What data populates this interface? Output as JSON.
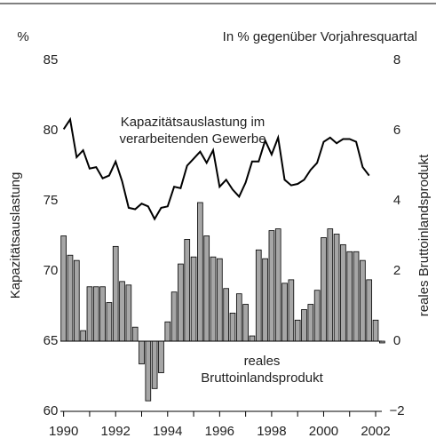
{
  "chart_data": {
    "type": "bar-line",
    "unit_label": "%",
    "right_title": "In % gegenüber Vorjahresquartal",
    "ylabel": "Kapazitätsauslastung",
    "y2label": "reales Bruttoinlandsprodukt",
    "annotations": [
      [
        "Kapazitätsauslastung im",
        "verarbeitenden Gewerbe"
      ],
      [
        "reales",
        "Bruttoinlandsprodukt"
      ]
    ],
    "x": [
      1990,
      1990.25,
      1990.5,
      1990.75,
      1991,
      1991.25,
      1991.5,
      1991.75,
      1992,
      1992.25,
      1992.5,
      1992.75,
      1993,
      1993.25,
      1993.5,
      1993.75,
      1994,
      1994.25,
      1994.5,
      1994.75,
      1995,
      1995.25,
      1995.5,
      1995.75,
      1996,
      1996.25,
      1996.5,
      1996.75,
      1997,
      1997.25,
      1997.5,
      1997.75,
      1998,
      1998.25,
      1998.5,
      1998.75,
      1999,
      1999.25,
      1999.5,
      1999.75,
      2000,
      2000.25,
      2000.5,
      2000.75,
      2001,
      2001.25,
      2001.5,
      2001.75,
      2002,
      2002.25
    ],
    "series": [
      {
        "name": "reales Bruttoinlandsprodukt",
        "kind": "bar",
        "axis": "y2",
        "color": "#a6a6a6",
        "values": [
          3.0,
          2.45,
          2.3,
          0.3,
          1.55,
          1.55,
          1.55,
          1.1,
          2.7,
          1.7,
          1.6,
          0.4,
          -0.65,
          -1.7,
          -1.35,
          -0.9,
          0.55,
          1.4,
          2.2,
          2.9,
          2.4,
          3.95,
          3.0,
          2.4,
          2.35,
          1.5,
          0.8,
          1.35,
          1.05,
          0.15,
          2.6,
          2.35,
          3.15,
          3.2,
          1.65,
          1.75,
          0.6,
          0.9,
          1.05,
          1.45,
          2.95,
          3.2,
          3.05,
          2.75,
          2.55,
          2.55,
          2.3,
          1.75,
          0.6,
          -0.05
        ]
      },
      {
        "name": "Kapazitätsauslastung im verarbeitenden Gewerbe",
        "kind": "line",
        "axis": "y",
        "color": "#000000",
        "values": [
          80.1,
          80.8,
          78.1,
          78.6,
          77.3,
          77.4,
          76.6,
          76.8,
          77.8,
          76.4,
          74.5,
          74.4,
          74.8,
          74.6,
          73.7,
          74.5,
          74.6,
          76.0,
          75.9,
          77.5,
          78.0,
          78.5,
          77.7,
          78.6,
          76.0,
          76.5,
          75.8,
          75.3,
          76.3,
          77.8,
          77.8,
          79.3,
          78.3,
          79.5,
          76.5,
          76.1,
          76.2,
          76.5,
          77.2,
          77.7,
          79.2,
          79.5,
          79.1,
          79.4,
          79.4,
          79.2,
          77.4,
          76.8,
          null,
          null
        ]
      }
    ],
    "xlim": [
      1989.875,
      2002.375
    ],
    "xticks": [
      1990,
      1992,
      1994,
      1996,
      1998,
      2000,
      2002
    ],
    "xminorticks": [
      1991,
      1993,
      1995,
      1997,
      1999,
      2001
    ],
    "ylim": [
      60,
      85
    ],
    "yticks": [
      60,
      65,
      70,
      75,
      80,
      85
    ],
    "y2lim": [
      -2,
      8
    ],
    "y2ticks": [
      {
        "value": -2,
        "label": "−2"
      },
      0,
      2,
      4,
      6,
      8
    ]
  }
}
